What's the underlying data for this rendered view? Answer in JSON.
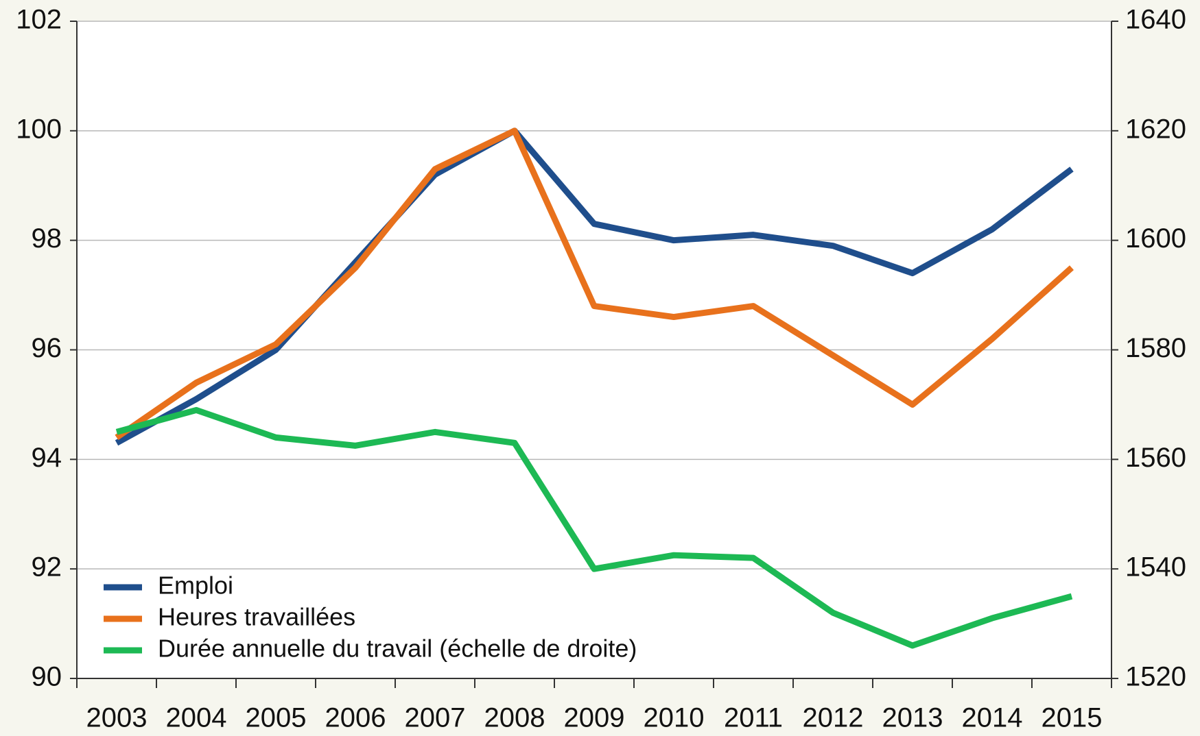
{
  "chart_data": {
    "type": "line",
    "categories": [
      "2003",
      "2004",
      "2005",
      "2006",
      "2007",
      "2008",
      "2009",
      "2010",
      "2011",
      "2012",
      "2013",
      "2014",
      "2015"
    ],
    "series": [
      {
        "name": "Emploi",
        "color": "#1f4e8c",
        "values": [
          94.3,
          95.1,
          96.0,
          97.6,
          99.2,
          100,
          98.3,
          98.0,
          98.1,
          97.9,
          97.4,
          98.2,
          99.3
        ]
      },
      {
        "name": "Heures travaillées",
        "color": "#e8711c",
        "values": [
          94.4,
          95.4,
          96.1,
          97.5,
          99.3,
          100,
          96.8,
          96.6,
          96.8,
          95.9,
          95.0,
          96.2,
          97.5
        ]
      },
      {
        "name": "Durée annuelle du travail (échelle de droite)",
        "color": "#1db954",
        "axis": "y2",
        "values": [
          1565,
          1569,
          1564,
          1562.5,
          1565,
          1563,
          1540,
          1542.5,
          1542,
          1532,
          1526,
          1531,
          1535
        ]
      }
    ],
    "ylim": [
      90,
      102
    ],
    "yticks": [
      90,
      92,
      94,
      96,
      98,
      100,
      102
    ],
    "y2lim": [
      1520,
      1640
    ],
    "y2ticks": [
      1520,
      1540,
      1560,
      1580,
      1600,
      1620,
      1640
    ],
    "grid": true,
    "legend": "lower left"
  }
}
